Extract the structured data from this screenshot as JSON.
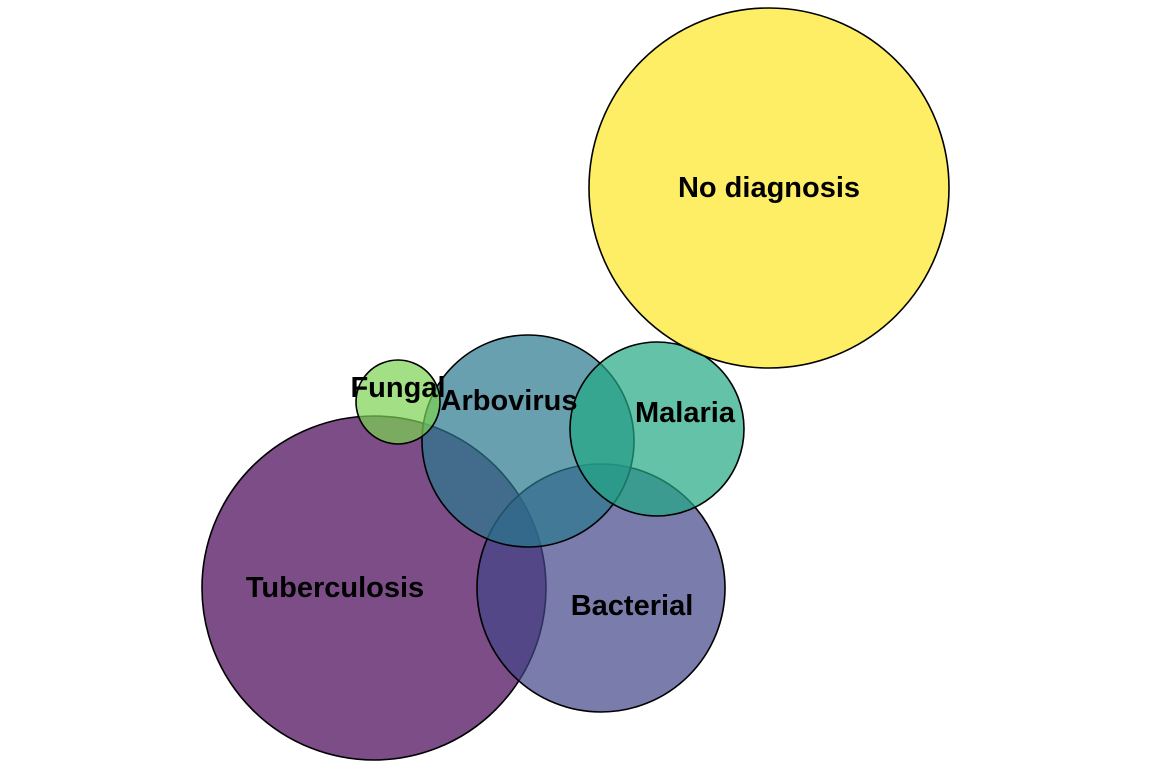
{
  "diagram": {
    "type": "euler-diagram",
    "sets": [
      {
        "key": "tuberculosis",
        "label": "Tuberculosis",
        "color": "#440154",
        "opacity": 0.7
      },
      {
        "key": "bacterial",
        "label": "Bacterial",
        "color": "#414487",
        "opacity": 0.7
      },
      {
        "key": "arbovirus",
        "label": "Arbovirus",
        "color": "#2a788e",
        "opacity": 0.7
      },
      {
        "key": "malaria",
        "label": "Malaria",
        "color": "#22a884",
        "opacity": 0.7
      },
      {
        "key": "fungal",
        "label": "Fungal",
        "color": "#7ad151",
        "opacity": 0.7
      },
      {
        "key": "no-diagnosis",
        "label": "No diagnosis",
        "color": "#fde725",
        "opacity": 0.7
      }
    ]
  }
}
